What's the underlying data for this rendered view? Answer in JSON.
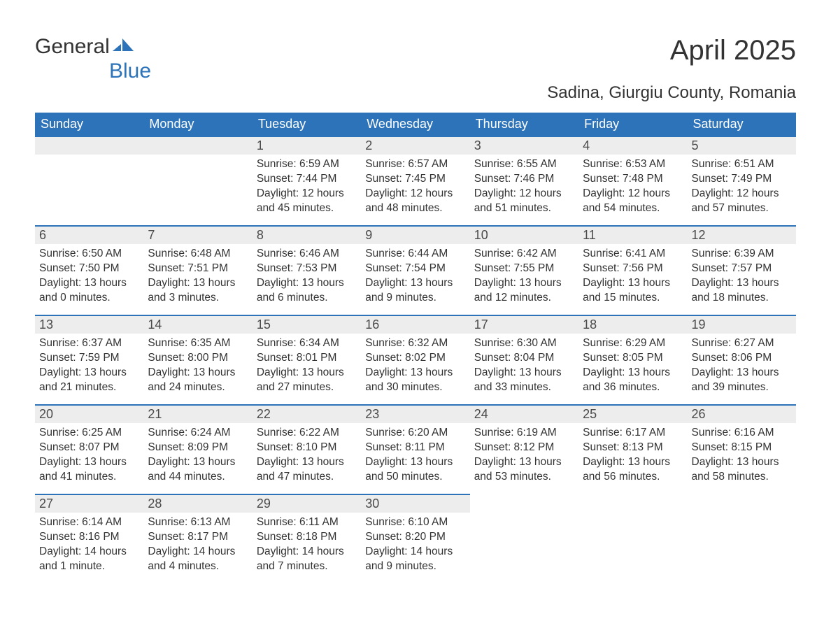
{
  "logo": {
    "word1": "General",
    "word2": "Blue",
    "icon_color": "#2d73b9"
  },
  "title": "April 2025",
  "location": "Sadina, Giurgiu County, Romania",
  "colors": {
    "header_bg": "#2d73b9",
    "header_text": "#ffffff",
    "daynum_bg": "#ededed",
    "row_rule": "#2d73b9",
    "body_text": "#333333",
    "page_bg": "#ffffff"
  },
  "typography": {
    "title_fontsize": 40,
    "location_fontsize": 24,
    "header_fontsize": 18,
    "daynum_fontsize": 18,
    "body_fontsize": 15.5,
    "font_family": "Arial"
  },
  "day_headers": [
    "Sunday",
    "Monday",
    "Tuesday",
    "Wednesday",
    "Thursday",
    "Friday",
    "Saturday"
  ],
  "weeks": [
    [
      {
        "blank": true
      },
      {
        "blank": true
      },
      {
        "day": "1",
        "sunrise": "Sunrise: 6:59 AM",
        "sunset": "Sunset: 7:44 PM",
        "daylight": "Daylight: 12 hours and 45 minutes."
      },
      {
        "day": "2",
        "sunrise": "Sunrise: 6:57 AM",
        "sunset": "Sunset: 7:45 PM",
        "daylight": "Daylight: 12 hours and 48 minutes."
      },
      {
        "day": "3",
        "sunrise": "Sunrise: 6:55 AM",
        "sunset": "Sunset: 7:46 PM",
        "daylight": "Daylight: 12 hours and 51 minutes."
      },
      {
        "day": "4",
        "sunrise": "Sunrise: 6:53 AM",
        "sunset": "Sunset: 7:48 PM",
        "daylight": "Daylight: 12 hours and 54 minutes."
      },
      {
        "day": "5",
        "sunrise": "Sunrise: 6:51 AM",
        "sunset": "Sunset: 7:49 PM",
        "daylight": "Daylight: 12 hours and 57 minutes."
      }
    ],
    [
      {
        "day": "6",
        "sunrise": "Sunrise: 6:50 AM",
        "sunset": "Sunset: 7:50 PM",
        "daylight": "Daylight: 13 hours and 0 minutes."
      },
      {
        "day": "7",
        "sunrise": "Sunrise: 6:48 AM",
        "sunset": "Sunset: 7:51 PM",
        "daylight": "Daylight: 13 hours and 3 minutes."
      },
      {
        "day": "8",
        "sunrise": "Sunrise: 6:46 AM",
        "sunset": "Sunset: 7:53 PM",
        "daylight": "Daylight: 13 hours and 6 minutes."
      },
      {
        "day": "9",
        "sunrise": "Sunrise: 6:44 AM",
        "sunset": "Sunset: 7:54 PM",
        "daylight": "Daylight: 13 hours and 9 minutes."
      },
      {
        "day": "10",
        "sunrise": "Sunrise: 6:42 AM",
        "sunset": "Sunset: 7:55 PM",
        "daylight": "Daylight: 13 hours and 12 minutes."
      },
      {
        "day": "11",
        "sunrise": "Sunrise: 6:41 AM",
        "sunset": "Sunset: 7:56 PM",
        "daylight": "Daylight: 13 hours and 15 minutes."
      },
      {
        "day": "12",
        "sunrise": "Sunrise: 6:39 AM",
        "sunset": "Sunset: 7:57 PM",
        "daylight": "Daylight: 13 hours and 18 minutes."
      }
    ],
    [
      {
        "day": "13",
        "sunrise": "Sunrise: 6:37 AM",
        "sunset": "Sunset: 7:59 PM",
        "daylight": "Daylight: 13 hours and 21 minutes."
      },
      {
        "day": "14",
        "sunrise": "Sunrise: 6:35 AM",
        "sunset": "Sunset: 8:00 PM",
        "daylight": "Daylight: 13 hours and 24 minutes."
      },
      {
        "day": "15",
        "sunrise": "Sunrise: 6:34 AM",
        "sunset": "Sunset: 8:01 PM",
        "daylight": "Daylight: 13 hours and 27 minutes."
      },
      {
        "day": "16",
        "sunrise": "Sunrise: 6:32 AM",
        "sunset": "Sunset: 8:02 PM",
        "daylight": "Daylight: 13 hours and 30 minutes."
      },
      {
        "day": "17",
        "sunrise": "Sunrise: 6:30 AM",
        "sunset": "Sunset: 8:04 PM",
        "daylight": "Daylight: 13 hours and 33 minutes."
      },
      {
        "day": "18",
        "sunrise": "Sunrise: 6:29 AM",
        "sunset": "Sunset: 8:05 PM",
        "daylight": "Daylight: 13 hours and 36 minutes."
      },
      {
        "day": "19",
        "sunrise": "Sunrise: 6:27 AM",
        "sunset": "Sunset: 8:06 PM",
        "daylight": "Daylight: 13 hours and 39 minutes."
      }
    ],
    [
      {
        "day": "20",
        "sunrise": "Sunrise: 6:25 AM",
        "sunset": "Sunset: 8:07 PM",
        "daylight": "Daylight: 13 hours and 41 minutes."
      },
      {
        "day": "21",
        "sunrise": "Sunrise: 6:24 AM",
        "sunset": "Sunset: 8:09 PM",
        "daylight": "Daylight: 13 hours and 44 minutes."
      },
      {
        "day": "22",
        "sunrise": "Sunrise: 6:22 AM",
        "sunset": "Sunset: 8:10 PM",
        "daylight": "Daylight: 13 hours and 47 minutes."
      },
      {
        "day": "23",
        "sunrise": "Sunrise: 6:20 AM",
        "sunset": "Sunset: 8:11 PM",
        "daylight": "Daylight: 13 hours and 50 minutes."
      },
      {
        "day": "24",
        "sunrise": "Sunrise: 6:19 AM",
        "sunset": "Sunset: 8:12 PM",
        "daylight": "Daylight: 13 hours and 53 minutes."
      },
      {
        "day": "25",
        "sunrise": "Sunrise: 6:17 AM",
        "sunset": "Sunset: 8:13 PM",
        "daylight": "Daylight: 13 hours and 56 minutes."
      },
      {
        "day": "26",
        "sunrise": "Sunrise: 6:16 AM",
        "sunset": "Sunset: 8:15 PM",
        "daylight": "Daylight: 13 hours and 58 minutes."
      }
    ],
    [
      {
        "day": "27",
        "sunrise": "Sunrise: 6:14 AM",
        "sunset": "Sunset: 8:16 PM",
        "daylight": "Daylight: 14 hours and 1 minute."
      },
      {
        "day": "28",
        "sunrise": "Sunrise: 6:13 AM",
        "sunset": "Sunset: 8:17 PM",
        "daylight": "Daylight: 14 hours and 4 minutes."
      },
      {
        "day": "29",
        "sunrise": "Sunrise: 6:11 AM",
        "sunset": "Sunset: 8:18 PM",
        "daylight": "Daylight: 14 hours and 7 minutes."
      },
      {
        "day": "30",
        "sunrise": "Sunrise: 6:10 AM",
        "sunset": "Sunset: 8:20 PM",
        "daylight": "Daylight: 14 hours and 9 minutes."
      },
      {
        "blank": true,
        "notop": true
      },
      {
        "blank": true,
        "notop": true
      },
      {
        "blank": true,
        "notop": true
      }
    ]
  ]
}
